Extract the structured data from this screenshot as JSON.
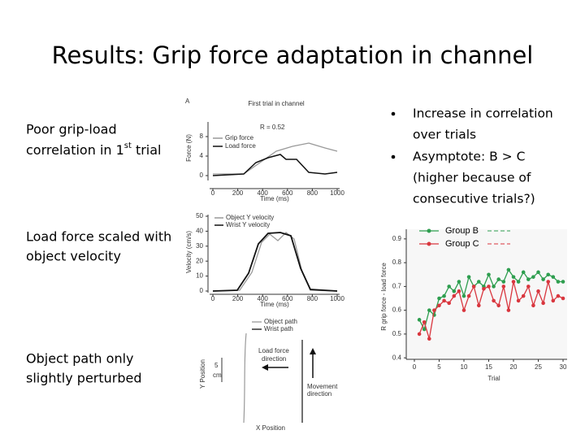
{
  "title": "Results: Grip force adaptation in channel",
  "captions": [
    {
      "line1": "Poor grip-load",
      "line2": "correlation in 1",
      "sup": "st",
      "line2_end": "trial"
    },
    {
      "line1": "Load force scaled with",
      "line2": "object velocity"
    },
    {
      "line1": "Object path only",
      "line2": "slightly perturbed"
    }
  ],
  "bullets": [
    [
      "Increase in correlation",
      "over trials"
    ],
    [
      "Asymptote: B > C",
      "(higher because of",
      "consecutive trials?)"
    ]
  ],
  "panel_force": {
    "label": "A",
    "title": "First trial in channel",
    "annotation": "R = 0.52",
    "ylabel": "Force (N)",
    "xlabel": "Time (ms)",
    "legend": [
      "Grip force",
      "Load force"
    ],
    "yticks": [
      8,
      4,
      0
    ],
    "xticks": [
      0,
      200,
      400,
      600,
      800,
      1000
    ]
  },
  "panel_velocity": {
    "ylabel": "Velocity (cm/s)",
    "xlabel": "Time (ms)",
    "legend": [
      "Object Y velocity",
      "Wrist Y velocity"
    ],
    "yticks": [
      50,
      40,
      30,
      20,
      10,
      0
    ],
    "xticks": [
      0,
      200,
      400,
      600,
      800,
      1000
    ]
  },
  "panel_path": {
    "legend": [
      "Object path",
      "Wrist path"
    ],
    "ylabel": "Y Position",
    "xlabel": "X Position",
    "scale": [
      "5",
      "cm"
    ],
    "load_label": [
      "Load force",
      "direction"
    ],
    "move_label": [
      "Movement",
      "direction"
    ]
  },
  "chart_data": {
    "type": "line",
    "ylabel": "R grip force - load force",
    "xlabel": "Trial",
    "x": [
      1,
      2,
      3,
      4,
      5,
      6,
      7,
      8,
      9,
      10,
      11,
      12,
      13,
      14,
      15,
      16,
      17,
      18,
      19,
      20,
      21,
      22,
      23,
      24,
      25,
      26,
      27,
      28,
      29,
      30
    ],
    "series": [
      {
        "name": "Group B",
        "color": "#2e9e4f",
        "values": [
          0.56,
          0.52,
          0.6,
          0.58,
          0.65,
          0.66,
          0.7,
          0.68,
          0.72,
          0.66,
          0.74,
          0.7,
          0.72,
          0.7,
          0.75,
          0.7,
          0.73,
          0.72,
          0.77,
          0.74,
          0.72,
          0.76,
          0.73,
          0.74,
          0.76,
          0.73,
          0.75,
          0.74,
          0.72,
          0.72
        ]
      },
      {
        "name": "Group C",
        "color": "#d9363e",
        "values": [
          0.5,
          0.55,
          0.48,
          0.6,
          0.62,
          0.64,
          0.63,
          0.66,
          0.68,
          0.6,
          0.66,
          0.7,
          0.62,
          0.69,
          0.7,
          0.64,
          0.62,
          0.7,
          0.6,
          0.72,
          0.64,
          0.66,
          0.7,
          0.62,
          0.68,
          0.63,
          0.72,
          0.64,
          0.66,
          0.65
        ]
      }
    ],
    "xlim": [
      -1,
      30
    ],
    "ylim": [
      0.38,
      0.92
    ],
    "xticks": [
      0,
      5,
      10,
      15,
      20,
      25,
      30
    ],
    "yticks": [
      0.4,
      0.5,
      0.6,
      0.7,
      0.8,
      0.9
    ]
  }
}
